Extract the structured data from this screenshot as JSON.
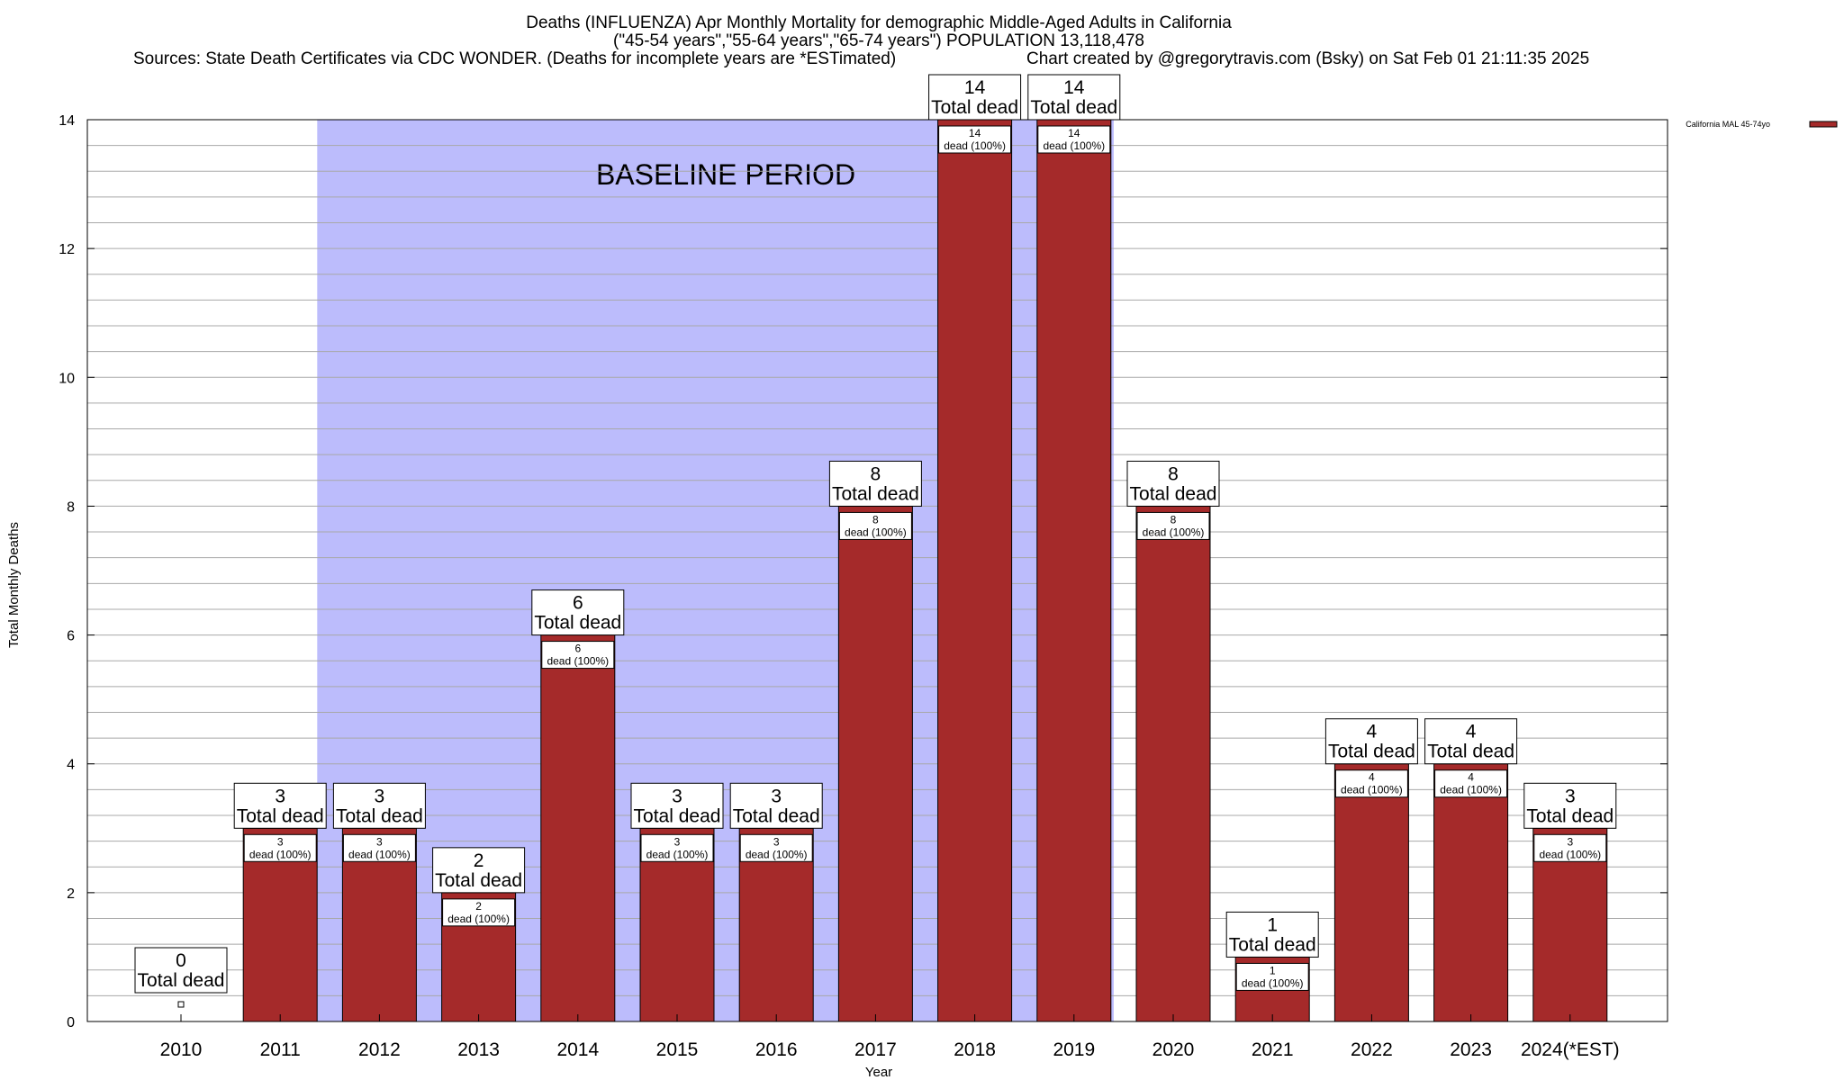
{
  "chart_data": {
    "type": "bar",
    "title_lines": [
      "Deaths (INFLUENZA) Apr Monthly Mortality for demographic Middle-Aged Adults in California",
      "(\"45-54 years\",\"55-64 years\",\"65-74 years\") POPULATION 13,118,478",
      "Sources: State Death Certificates via CDC WONDER. (Deaths for incomplete years are *ESTimated)",
      "Chart created by @gregorytravis.com (Bsky) on Sat Feb 01 21:11:35 2025"
    ],
    "xlabel": "Year",
    "ylabel": "Total Monthly Deaths",
    "ylim": [
      0,
      14
    ],
    "yticks": [
      0,
      2,
      4,
      6,
      8,
      10,
      12,
      14
    ],
    "grid": true,
    "legend": {
      "placement": "top-right",
      "entries": [
        "California MAL 45-74yo"
      ]
    },
    "baseline_label": "BASELINE PERIOD",
    "baseline_range": [
      "2012",
      "2019"
    ],
    "categories": [
      "2010",
      "2011",
      "2012",
      "2013",
      "2014",
      "2015",
      "2016",
      "2017",
      "2018",
      "2019",
      "2020",
      "2021",
      "2022",
      "2023",
      "2024(*EST)"
    ],
    "series": [
      {
        "name": "California MAL 45-74yo",
        "values": [
          0,
          3,
          3,
          2,
          6,
          3,
          3,
          8,
          14,
          14,
          8,
          1,
          4,
          4,
          3
        ]
      }
    ],
    "total_label_suffix": "Total dead",
    "inner_label_suffix": "dead (100%)"
  },
  "colors": {
    "bar": "#a52a2a",
    "baseline_fill": "#bcbcfc",
    "grid": "#a8a8a8"
  }
}
